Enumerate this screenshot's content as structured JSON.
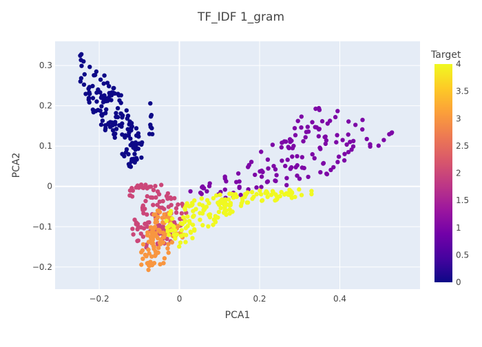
{
  "chart_data": {
    "type": "scatter",
    "title": "TF_IDF 1_gram",
    "xlabel": "PCA1",
    "ylabel": "PCA2",
    "xlim": [
      -0.31,
      0.6
    ],
    "ylim": [
      -0.255,
      0.36
    ],
    "x_ticks": [
      -0.2,
      0,
      0.2,
      0.4
    ],
    "x_tick_labels": [
      "−0.2",
      "0",
      "0.2",
      "0.4"
    ],
    "y_ticks": [
      -0.2,
      -0.1,
      0,
      0.1,
      0.2,
      0.3
    ],
    "y_tick_labels": [
      "−0.2",
      "−0.1",
      "0",
      "0.1",
      "0.2",
      "0.3"
    ],
    "grid": true,
    "plot_background": "#e5ecf6",
    "colorbar": {
      "title": "Target",
      "range": [
        0,
        4
      ],
      "ticks": [
        0,
        0.5,
        1,
        1.5,
        2,
        2.5,
        3,
        3.5,
        4
      ],
      "tick_labels": [
        "0",
        "0.5",
        "1",
        "1.5",
        "2",
        "2.5",
        "3",
        "3.5",
        "4"
      ],
      "colorscale": [
        "#0d0887",
        "#46039f",
        "#7201a8",
        "#9c179e",
        "#bd3786",
        "#d8576b",
        "#ed7953",
        "#fb9f3a",
        "#fdca26",
        "#f0f921"
      ]
    },
    "clusters": [
      {
        "target": 0,
        "n": 150,
        "seed": 11,
        "outline": [
          [
            -0.255,
            0.33
          ],
          [
            -0.235,
            0.33
          ],
          [
            -0.21,
            0.29
          ],
          [
            -0.185,
            0.28
          ],
          [
            -0.175,
            0.26
          ],
          [
            -0.145,
            0.23
          ],
          [
            -0.135,
            0.21
          ],
          [
            -0.12,
            0.17
          ],
          [
            -0.095,
            0.12
          ],
          [
            -0.085,
            0.09
          ],
          [
            -0.09,
            0.07
          ],
          [
            -0.12,
            0.05
          ],
          [
            -0.13,
            0.04
          ],
          [
            -0.135,
            0.06
          ],
          [
            -0.16,
            0.1
          ],
          [
            -0.18,
            0.13
          ],
          [
            -0.2,
            0.16
          ],
          [
            -0.225,
            0.2
          ],
          [
            -0.24,
            0.24
          ],
          [
            -0.26,
            0.29
          ]
        ]
      },
      {
        "target": 0,
        "n": 8,
        "seed": 12,
        "outline": [
          [
            -0.075,
            0.21
          ],
          [
            -0.065,
            0.21
          ],
          [
            -0.065,
            0.12
          ],
          [
            -0.075,
            0.12
          ]
        ]
      },
      {
        "target": 1,
        "n": 140,
        "seed": 21,
        "outline": [
          [
            0.02,
            -0.01
          ],
          [
            0.1,
            0.02
          ],
          [
            0.18,
            0.08
          ],
          [
            0.26,
            0.13
          ],
          [
            0.32,
            0.19
          ],
          [
            0.38,
            0.2
          ],
          [
            0.45,
            0.18
          ],
          [
            0.52,
            0.14
          ],
          [
            0.55,
            0.13
          ],
          [
            0.545,
            0.12
          ],
          [
            0.5,
            0.1
          ],
          [
            0.44,
            0.09
          ],
          [
            0.4,
            0.05
          ],
          [
            0.36,
            0.02
          ],
          [
            0.28,
            0.0
          ],
          [
            0.2,
            -0.01
          ],
          [
            0.12,
            -0.03
          ],
          [
            0.06,
            -0.03
          ]
        ]
      },
      {
        "target": 2,
        "n": 120,
        "seed": 31,
        "outline": [
          [
            -0.14,
            0.0
          ],
          [
            -0.06,
            0.01
          ],
          [
            0.0,
            -0.01
          ],
          [
            0.02,
            -0.06
          ],
          [
            -0.02,
            -0.15
          ],
          [
            -0.06,
            -0.165
          ],
          [
            -0.09,
            -0.16
          ],
          [
            -0.115,
            -0.12
          ],
          [
            -0.12,
            -0.09
          ],
          [
            -0.11,
            -0.05
          ],
          [
            -0.115,
            -0.03
          ],
          [
            -0.14,
            -0.01
          ]
        ]
      },
      {
        "target": 3,
        "n": 100,
        "seed": 41,
        "outline": [
          [
            -0.07,
            -0.06
          ],
          [
            -0.03,
            -0.06
          ],
          [
            0.0,
            -0.09
          ],
          [
            0.01,
            -0.13
          ],
          [
            -0.02,
            -0.16
          ],
          [
            -0.04,
            -0.2
          ],
          [
            -0.07,
            -0.21
          ],
          [
            -0.1,
            -0.2
          ],
          [
            -0.095,
            -0.16
          ],
          [
            -0.085,
            -0.12
          ]
        ]
      },
      {
        "target": 4,
        "n": 170,
        "seed": 51,
        "outline": [
          [
            -0.04,
            -0.07
          ],
          [
            0.03,
            -0.03
          ],
          [
            0.1,
            -0.02
          ],
          [
            0.18,
            -0.01
          ],
          [
            0.24,
            -0.01
          ],
          [
            0.33,
            0.0
          ],
          [
            0.34,
            -0.02
          ],
          [
            0.22,
            -0.04
          ],
          [
            0.14,
            -0.06
          ],
          [
            0.08,
            -0.1
          ],
          [
            0.03,
            -0.13
          ],
          [
            0.0,
            -0.15
          ],
          [
            -0.03,
            -0.12
          ]
        ]
      }
    ]
  }
}
